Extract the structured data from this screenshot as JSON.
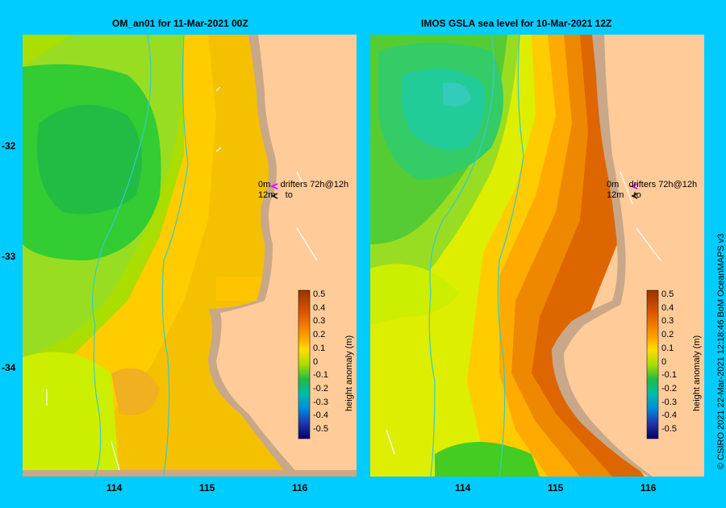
{
  "panels": [
    {
      "id": "left",
      "title": "OM_an01  for 11-Mar-2021 00Z"
    },
    {
      "id": "right",
      "title": "IMOS  GSLA sea level   for 10-Mar-2021 12Z"
    }
  ],
  "drifters": {
    "line1_depth": "0m",
    "line1_label": "drifters 72h@12h",
    "line2_depth": "12m",
    "line2_label": "to"
  },
  "legend": {
    "title": "height anomaly (m)",
    "ticks": [
      "0.5",
      "0.4",
      "0.3",
      "0.2",
      "0.1",
      "0",
      "-0.1",
      "-0.2",
      "-0.3",
      "-0.4",
      "-0.5"
    ]
  },
  "axes": {
    "x_ticks": [
      "114",
      "115",
      "116"
    ],
    "y_ticks": [
      "-32",
      "-33",
      "-34"
    ]
  },
  "credit": "© CSIRO 2021   22-Mar-2021 12:18:46 BoM OceanMAPS v3",
  "colors": {
    "land": "#ffcc99",
    "shelf_land": "#c8a888",
    "frame": "#00ccff",
    "current": "#33cccc"
  }
}
